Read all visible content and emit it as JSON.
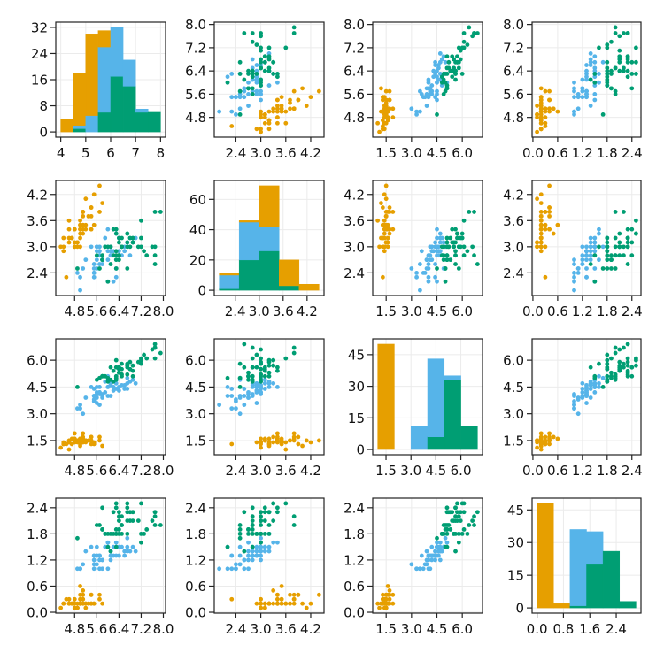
{
  "chart_data": {
    "type": "scatter-matrix",
    "grid": true,
    "legend": "none",
    "groups": [
      {
        "color": "#E69F00",
        "points": [
          [
            5.1,
            3.5,
            1.4,
            0.2
          ],
          [
            4.9,
            3.0,
            1.4,
            0.2
          ],
          [
            4.7,
            3.2,
            1.3,
            0.2
          ],
          [
            4.6,
            3.1,
            1.5,
            0.2
          ],
          [
            5.0,
            3.6,
            1.4,
            0.2
          ],
          [
            5.4,
            3.9,
            1.7,
            0.4
          ],
          [
            4.6,
            3.4,
            1.4,
            0.3
          ],
          [
            5.0,
            3.4,
            1.5,
            0.2
          ],
          [
            4.4,
            2.9,
            1.4,
            0.2
          ],
          [
            4.9,
            3.1,
            1.5,
            0.1
          ],
          [
            5.4,
            3.7,
            1.5,
            0.2
          ],
          [
            4.8,
            3.4,
            1.6,
            0.2
          ],
          [
            4.8,
            3.0,
            1.4,
            0.1
          ],
          [
            4.3,
            3.0,
            1.1,
            0.1
          ],
          [
            5.8,
            4.0,
            1.2,
            0.2
          ],
          [
            5.7,
            4.4,
            1.5,
            0.4
          ],
          [
            5.4,
            3.9,
            1.3,
            0.4
          ],
          [
            5.1,
            3.5,
            1.4,
            0.3
          ],
          [
            5.7,
            3.8,
            1.7,
            0.3
          ],
          [
            5.1,
            3.8,
            1.5,
            0.3
          ],
          [
            5.4,
            3.4,
            1.7,
            0.2
          ],
          [
            5.1,
            3.7,
            1.5,
            0.4
          ],
          [
            4.6,
            3.6,
            1.0,
            0.2
          ],
          [
            5.1,
            3.3,
            1.7,
            0.5
          ],
          [
            4.8,
            3.4,
            1.9,
            0.2
          ],
          [
            5.0,
            3.0,
            1.6,
            0.2
          ],
          [
            5.0,
            3.4,
            1.6,
            0.4
          ],
          [
            5.2,
            3.5,
            1.5,
            0.2
          ],
          [
            5.2,
            3.4,
            1.4,
            0.2
          ],
          [
            4.7,
            3.2,
            1.6,
            0.2
          ],
          [
            4.8,
            3.1,
            1.6,
            0.2
          ],
          [
            5.4,
            3.4,
            1.5,
            0.4
          ],
          [
            5.2,
            4.1,
            1.5,
            0.1
          ],
          [
            5.5,
            4.2,
            1.4,
            0.2
          ],
          [
            4.9,
            3.1,
            1.5,
            0.1
          ],
          [
            5.0,
            3.2,
            1.2,
            0.2
          ],
          [
            5.5,
            3.5,
            1.3,
            0.2
          ],
          [
            4.9,
            3.1,
            1.5,
            0.1
          ],
          [
            4.4,
            3.0,
            1.3,
            0.2
          ],
          [
            5.1,
            3.4,
            1.5,
            0.2
          ],
          [
            5.0,
            3.5,
            1.3,
            0.3
          ],
          [
            4.5,
            2.3,
            1.3,
            0.3
          ],
          [
            4.4,
            3.2,
            1.3,
            0.2
          ],
          [
            5.0,
            3.5,
            1.6,
            0.6
          ],
          [
            5.1,
            3.8,
            1.9,
            0.4
          ],
          [
            4.8,
            3.0,
            1.4,
            0.3
          ],
          [
            5.1,
            3.8,
            1.6,
            0.2
          ],
          [
            4.6,
            3.2,
            1.4,
            0.2
          ],
          [
            5.3,
            3.7,
            1.5,
            0.2
          ],
          [
            5.0,
            3.3,
            1.4,
            0.2
          ]
        ]
      },
      {
        "color": "#56B4E9",
        "points": [
          [
            7.0,
            3.2,
            4.7,
            1.4
          ],
          [
            6.4,
            3.2,
            4.5,
            1.5
          ],
          [
            6.9,
            3.1,
            4.9,
            1.5
          ],
          [
            5.5,
            2.3,
            4.0,
            1.3
          ],
          [
            6.5,
            2.8,
            4.6,
            1.5
          ],
          [
            5.7,
            2.8,
            4.5,
            1.3
          ],
          [
            6.3,
            3.3,
            4.7,
            1.6
          ],
          [
            4.9,
            2.4,
            3.3,
            1.0
          ],
          [
            6.6,
            2.9,
            4.6,
            1.3
          ],
          [
            5.2,
            2.7,
            3.9,
            1.4
          ],
          [
            5.0,
            2.0,
            3.5,
            1.0
          ],
          [
            5.9,
            3.0,
            4.2,
            1.5
          ],
          [
            6.0,
            2.2,
            4.0,
            1.0
          ],
          [
            6.1,
            2.9,
            4.7,
            1.4
          ],
          [
            5.6,
            2.9,
            3.6,
            1.3
          ],
          [
            6.7,
            3.1,
            4.4,
            1.4
          ],
          [
            5.6,
            3.0,
            4.5,
            1.5
          ],
          [
            5.8,
            2.7,
            4.1,
            1.0
          ],
          [
            6.2,
            2.2,
            4.5,
            1.5
          ],
          [
            5.6,
            2.5,
            3.9,
            1.1
          ],
          [
            5.9,
            3.2,
            4.8,
            1.8
          ],
          [
            6.1,
            2.8,
            4.0,
            1.3
          ],
          [
            6.3,
            2.5,
            4.9,
            1.5
          ],
          [
            6.1,
            2.8,
            4.7,
            1.2
          ],
          [
            6.4,
            2.9,
            4.3,
            1.3
          ],
          [
            6.6,
            3.0,
            4.4,
            1.4
          ],
          [
            6.8,
            2.8,
            4.8,
            1.4
          ],
          [
            6.7,
            3.0,
            5.0,
            1.7
          ],
          [
            6.0,
            2.9,
            4.5,
            1.5
          ],
          [
            5.7,
            2.6,
            3.5,
            1.0
          ],
          [
            5.5,
            2.4,
            3.8,
            1.1
          ],
          [
            5.5,
            2.4,
            3.7,
            1.0
          ],
          [
            5.8,
            2.7,
            3.9,
            1.2
          ],
          [
            6.0,
            2.7,
            5.1,
            1.6
          ],
          [
            5.4,
            3.0,
            4.5,
            1.5
          ],
          [
            6.0,
            3.4,
            4.5,
            1.6
          ],
          [
            6.7,
            3.1,
            4.7,
            1.5
          ],
          [
            6.3,
            2.3,
            4.4,
            1.3
          ],
          [
            5.6,
            3.0,
            4.1,
            1.3
          ],
          [
            5.5,
            2.5,
            4.0,
            1.3
          ],
          [
            5.5,
            2.6,
            4.4,
            1.2
          ],
          [
            6.1,
            3.0,
            4.6,
            1.4
          ],
          [
            5.8,
            2.6,
            4.0,
            1.2
          ],
          [
            5.0,
            2.3,
            3.3,
            1.0
          ],
          [
            5.6,
            2.7,
            4.2,
            1.3
          ],
          [
            5.7,
            3.0,
            4.2,
            1.2
          ],
          [
            5.7,
            2.9,
            4.2,
            1.3
          ],
          [
            6.2,
            2.9,
            4.3,
            1.3
          ],
          [
            5.1,
            2.5,
            3.0,
            1.1
          ],
          [
            5.7,
            2.8,
            4.1,
            1.3
          ]
        ]
      },
      {
        "color": "#009E73",
        "points": [
          [
            6.3,
            3.3,
            6.0,
            2.5
          ],
          [
            5.8,
            2.7,
            5.1,
            1.9
          ],
          [
            7.1,
            3.0,
            5.9,
            2.1
          ],
          [
            6.3,
            2.9,
            5.6,
            1.8
          ],
          [
            6.5,
            3.0,
            5.8,
            2.2
          ],
          [
            7.6,
            3.0,
            6.6,
            2.1
          ],
          [
            4.9,
            2.5,
            4.5,
            1.7
          ],
          [
            7.3,
            2.9,
            6.3,
            1.8
          ],
          [
            6.7,
            2.5,
            5.8,
            1.8
          ],
          [
            7.2,
            3.6,
            6.1,
            2.5
          ],
          [
            6.5,
            3.2,
            5.1,
            2.0
          ],
          [
            6.4,
            2.7,
            5.3,
            1.9
          ],
          [
            6.8,
            3.0,
            5.5,
            2.1
          ],
          [
            5.7,
            2.5,
            5.0,
            2.0
          ],
          [
            5.8,
            2.8,
            5.1,
            2.4
          ],
          [
            6.4,
            3.2,
            5.3,
            2.3
          ],
          [
            6.5,
            3.0,
            5.5,
            1.8
          ],
          [
            7.7,
            3.8,
            6.7,
            2.2
          ],
          [
            7.7,
            2.6,
            6.9,
            2.3
          ],
          [
            6.0,
            2.2,
            5.0,
            1.5
          ],
          [
            6.9,
            3.2,
            5.7,
            2.3
          ],
          [
            5.6,
            2.8,
            4.9,
            2.0
          ],
          [
            7.7,
            2.8,
            6.7,
            2.0
          ],
          [
            6.3,
            2.7,
            4.9,
            1.8
          ],
          [
            6.7,
            3.3,
            5.7,
            2.1
          ],
          [
            7.2,
            3.2,
            6.0,
            1.8
          ],
          [
            6.2,
            2.8,
            4.8,
            1.8
          ],
          [
            6.1,
            3.0,
            4.9,
            1.8
          ],
          [
            6.4,
            2.8,
            5.6,
            2.1
          ],
          [
            7.2,
            3.0,
            5.8,
            1.6
          ],
          [
            7.4,
            2.8,
            6.1,
            1.9
          ],
          [
            7.9,
            3.8,
            6.4,
            2.0
          ],
          [
            6.4,
            2.8,
            5.6,
            2.2
          ],
          [
            6.3,
            2.8,
            5.1,
            1.5
          ],
          [
            6.1,
            2.6,
            5.6,
            1.4
          ],
          [
            7.7,
            3.0,
            6.1,
            2.3
          ],
          [
            6.3,
            3.4,
            5.6,
            2.4
          ],
          [
            6.4,
            3.1,
            5.5,
            1.8
          ],
          [
            6.0,
            3.0,
            4.8,
            1.8
          ],
          [
            6.9,
            3.1,
            5.4,
            2.1
          ],
          [
            6.7,
            3.1,
            5.6,
            2.4
          ],
          [
            6.9,
            3.1,
            5.1,
            2.3
          ],
          [
            5.8,
            2.7,
            5.1,
            1.9
          ],
          [
            6.8,
            3.2,
            5.9,
            2.3
          ],
          [
            6.7,
            3.3,
            5.7,
            2.5
          ],
          [
            6.7,
            3.0,
            5.2,
            2.3
          ],
          [
            6.3,
            2.5,
            5.0,
            1.9
          ],
          [
            6.5,
            3.0,
            5.2,
            2.0
          ],
          [
            6.2,
            3.4,
            5.4,
            2.3
          ],
          [
            5.9,
            3.0,
            5.1,
            1.8
          ]
        ]
      }
    ],
    "variables": [
      {
        "lim": [
          4.12,
          8.08
        ],
        "ticks": [
          "4.8",
          "5.6",
          "6.4",
          "7.2",
          "8.0"
        ],
        "hist": {
          "xlim": [
            3.8,
            8.2
          ],
          "xticks": [
            "4",
            "5",
            "6",
            "7",
            "8"
          ],
          "bins": [
            4,
            4.5,
            5,
            5.5,
            6,
            6.5,
            7,
            7.5,
            8
          ],
          "counts": [
            [
              4,
              16,
              25,
              5,
              0,
              0,
              0,
              0
            ],
            [
              0,
              1,
              5,
              20,
              15,
              8,
              1,
              0
            ],
            [
              0,
              1,
              0,
              6,
              17,
              14,
              6,
              6
            ]
          ],
          "ylim": [
            -1.6,
            33.6
          ],
          "yticks": [
            "0",
            "8",
            "16",
            "24",
            "32"
          ]
        }
      },
      {
        "lim": [
          1.88,
          4.52
        ],
        "ticks": [
          "2.4",
          "3.0",
          "3.6",
          "4.2"
        ],
        "hist": {
          "xlim": [
            1.875,
            4.625
          ],
          "xticks": [
            "2.4",
            "3.0",
            "3.6",
            "4.2"
          ],
          "bins": [
            2,
            2.5,
            3,
            3.5,
            4,
            4.5
          ],
          "counts": [
            [
              1,
              1,
              27,
              17,
              4
            ],
            [
              9,
              25,
              16,
              0,
              0
            ],
            [
              1,
              20,
              26,
              3,
              0
            ]
          ],
          "ylim": [
            -3.45,
            72.45
          ],
          "yticks": [
            "0",
            "20",
            "40",
            "60"
          ]
        }
      },
      {
        "lim": [
          0.705,
          7.195
        ],
        "ticks": [
          "1.5",
          "3.0",
          "4.5",
          "6.0"
        ],
        "hist": {
          "xlim": [
            0.7,
            7.3
          ],
          "xticks": [
            "1.5",
            "3.0",
            "4.5",
            "6.0"
          ],
          "bins": [
            1,
            2,
            3,
            4,
            5,
            6,
            7
          ],
          "counts": [
            [
              50,
              0,
              0,
              0,
              0,
              0
            ],
            [
              0,
              0,
              11,
              37,
              2,
              0
            ],
            [
              0,
              0,
              0,
              6,
              33,
              11
            ]
          ],
          "ylim": [
            -2.5,
            52.5
          ],
          "yticks": [
            "0",
            "15",
            "30",
            "45"
          ]
        }
      },
      {
        "lim": [
          -0.02,
          2.62
        ],
        "ticks": [
          "0.0",
          "0.6",
          "1.2",
          "1.8",
          "2.4"
        ],
        "hist": {
          "xlim": [
            -0.15,
            3.15
          ],
          "xticks": [
            "0.0",
            "0.8",
            "1.6",
            "2.4"
          ],
          "bins": [
            0,
            0.5,
            1,
            1.5,
            2,
            2.5,
            3
          ],
          "counts": [
            [
              48,
              2,
              0,
              0,
              0,
              0
            ],
            [
              0,
              0,
              35,
              15,
              0,
              0
            ],
            [
              0,
              0,
              1,
              20,
              26,
              3
            ]
          ],
          "ylim": [
            -2.4,
            50.4
          ],
          "yticks": [
            "0",
            "15",
            "30",
            "45"
          ]
        }
      }
    ]
  }
}
